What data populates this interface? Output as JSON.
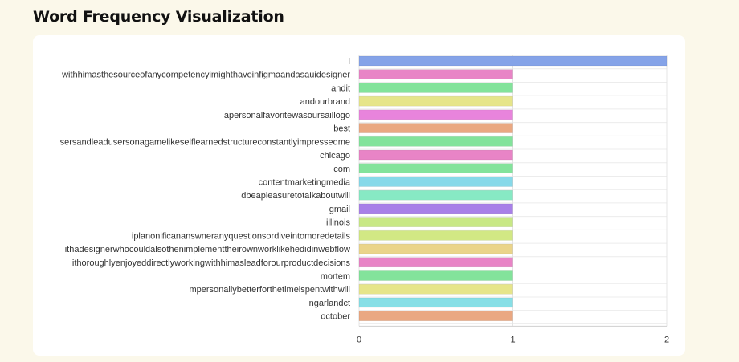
{
  "page": {
    "title": "Word Frequency Visualization"
  },
  "chart_data": {
    "type": "bar",
    "orientation": "horizontal",
    "title": "",
    "xlabel": "",
    "ylabel": "",
    "xlim": [
      0,
      2
    ],
    "x_ticks": [
      "0",
      "1",
      "2"
    ],
    "grid": true,
    "legend": "none",
    "categories": [
      "i",
      "withhimasthesourceofanycompetencyimighthaveinfigmaandasauidesigner",
      "andit",
      "andourbrand",
      "apersonalfavoritewasoursaillogo",
      "best",
      "sersandleadusersonagamelikeselflearnedstructureconstantlyimpressedme",
      "chicago",
      "com",
      "contentmarketingmedia",
      "dbeapleasuretotalkaboutwill",
      "gmail",
      "illinois",
      "iplanonificananswneranyquestionsordiveintomoredetails",
      "ithadesignerwhocouldalsothenimplementtheirownworklikehedidinwebflow",
      "ithoroughlyenjoyeddirectlyworkingwithhimasleadforourproductdecisions",
      "mortem",
      "mpersonallybetterforthetimeispentwithwill",
      "ngarlandct",
      "october"
    ],
    "values": [
      2,
      1,
      1,
      1,
      1,
      1,
      1,
      1,
      1,
      1,
      1,
      1,
      1,
      1,
      1,
      1,
      1,
      1,
      1,
      1
    ],
    "colors": [
      "#85a3e8",
      "#e884c6",
      "#83e39b",
      "#e6e58a",
      "#e884dc",
      "#eaa882",
      "#83e39b",
      "#e884c6",
      "#83e39b",
      "#87d9e9",
      "#87e9c4",
      "#a880e8",
      "#c8e885",
      "#d2e884",
      "#ead48a",
      "#e884c6",
      "#83e39b",
      "#e6e58a",
      "#87dfe6",
      "#eaa882"
    ]
  }
}
